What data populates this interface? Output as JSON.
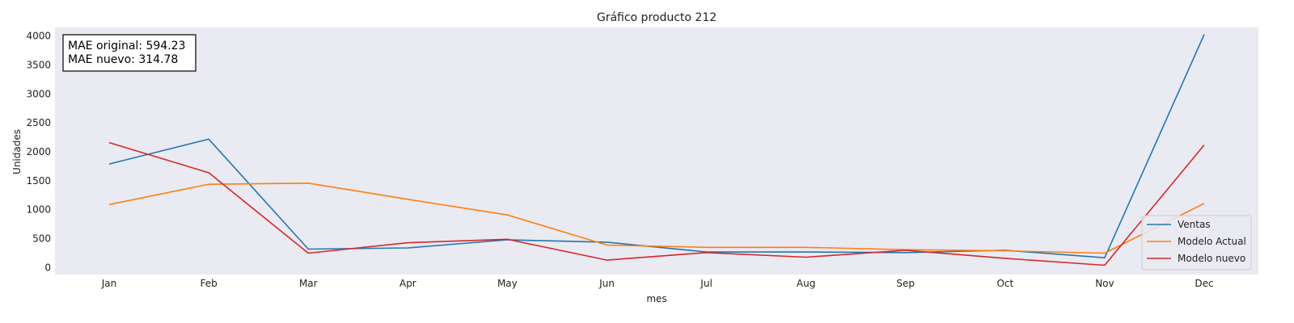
{
  "chart_data": {
    "type": "line",
    "title": "Gráfico producto 212",
    "xlabel": "mes",
    "ylabel": "Unidades",
    "categories": [
      "Jan",
      "Feb",
      "Mar",
      "Apr",
      "May",
      "Jun",
      "Jul",
      "Aug",
      "Sep",
      "Oct",
      "Nov",
      "Dec"
    ],
    "yticks": [
      0,
      500,
      1000,
      1500,
      2000,
      2500,
      3000,
      3500,
      4000
    ],
    "ylim": [
      -120,
      4150
    ],
    "grid": false,
    "legend_position": "bottom-right",
    "annotation": [
      "MAE original: 594.23",
      "MAE nuevo: 314.78"
    ],
    "series": [
      {
        "name": "Ventas",
        "color": "#1f77b4",
        "values": [
          1790,
          2220,
          320,
          340,
          480,
          440,
          270,
          270,
          260,
          300,
          170,
          4030
        ]
      },
      {
        "name": "Modelo Actual",
        "color": "#ff7f0e",
        "values": [
          1090,
          1440,
          1460,
          1180,
          910,
          390,
          350,
          350,
          310,
          290,
          250,
          1110
        ]
      },
      {
        "name": "Modelo nuevo",
        "color": "#d62728",
        "values": [
          2160,
          1640,
          250,
          430,
          490,
          130,
          260,
          180,
          300,
          160,
          40,
          2120
        ]
      }
    ]
  }
}
